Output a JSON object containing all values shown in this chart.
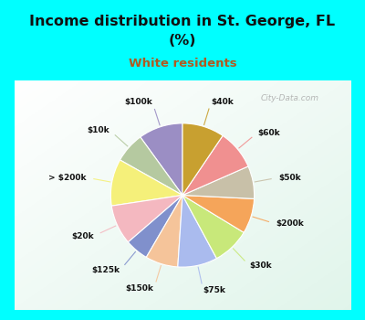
{
  "title_line1": "Income distribution in St. George, FL",
  "title_line2": "(%)",
  "subtitle": "White residents",
  "bg_cyan": "#00FFFF",
  "bg_chart": "#e0f2ec",
  "title_color": "#111111",
  "subtitle_color": "#b05a20",
  "watermark": "City-Data.com",
  "slices": [
    {
      "label": "$100k",
      "value": 9.5,
      "color": "#9b8ec4"
    },
    {
      "label": "$10k",
      "value": 6.5,
      "color": "#b5c9a0"
    },
    {
      "label": "> $200k",
      "value": 10.0,
      "color": "#f5f07a"
    },
    {
      "label": "$20k",
      "value": 8.5,
      "color": "#f4b8c0"
    },
    {
      "label": "$125k",
      "value": 5.0,
      "color": "#8090cc"
    },
    {
      "label": "$150k",
      "value": 7.0,
      "color": "#f5c49a"
    },
    {
      "label": "$75k",
      "value": 8.5,
      "color": "#aabbee"
    },
    {
      "label": "$30k",
      "value": 8.0,
      "color": "#c8e87a"
    },
    {
      "label": "$200k",
      "value": 7.5,
      "color": "#f5a55a"
    },
    {
      "label": "$50k",
      "value": 7.0,
      "color": "#c8c0a8"
    },
    {
      "label": "$60k",
      "value": 8.5,
      "color": "#f09090"
    },
    {
      "label": "$40k",
      "value": 9.0,
      "color": "#c8a030"
    }
  ]
}
